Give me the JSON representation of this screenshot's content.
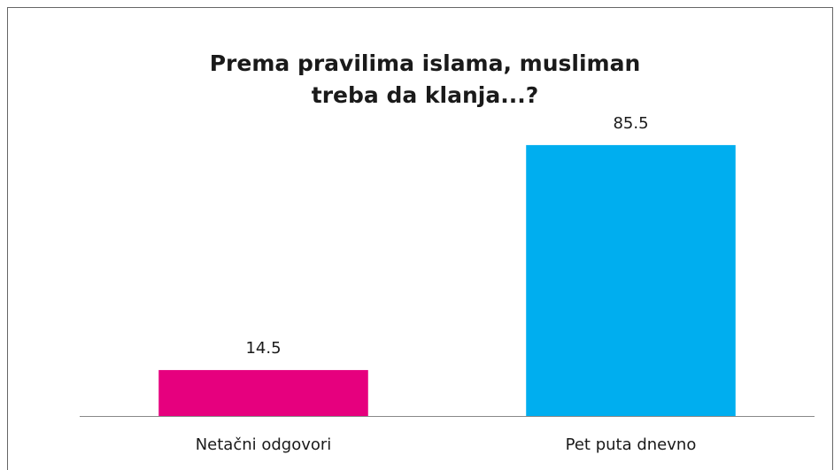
{
  "chart_data": {
    "type": "bar",
    "title": [
      "Prema pravilima islama, musliman",
      "treba da klanja...?"
    ],
    "categories": [
      "Netačni odgovori",
      "Pet puta dnevno"
    ],
    "values": [
      14.5,
      85.5
    ],
    "colors": [
      "#e6007e",
      "#00aeef"
    ],
    "ylim": [
      0,
      100
    ]
  }
}
